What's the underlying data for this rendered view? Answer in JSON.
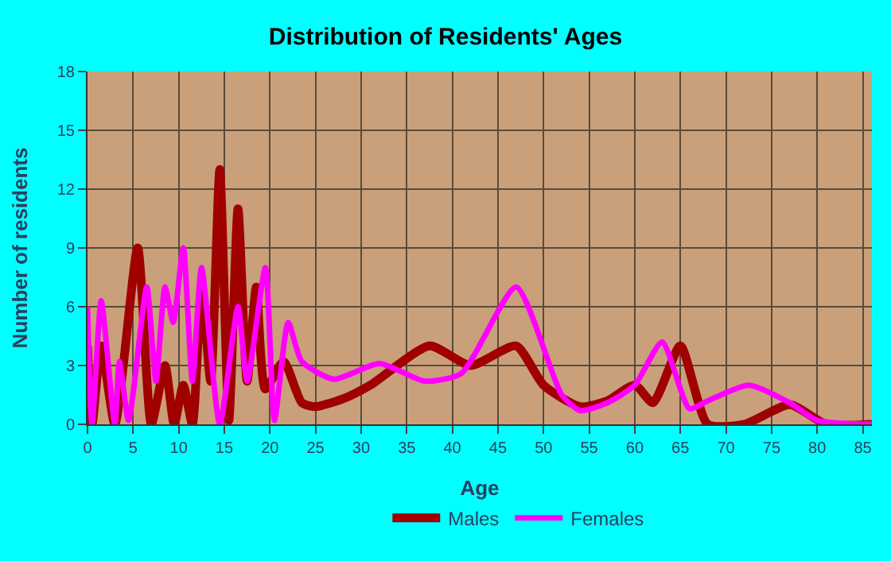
{
  "chart_data": {
    "type": "line",
    "title": "Distribution of Residents' Ages",
    "xlabel": "Age",
    "ylabel": "Number of residents",
    "xlim": [
      0,
      86
    ],
    "ylim": [
      0,
      18
    ],
    "xticks": [
      0,
      5,
      10,
      15,
      20,
      25,
      30,
      35,
      40,
      45,
      50,
      55,
      60,
      65,
      70,
      75,
      80,
      85
    ],
    "yticks": [
      0,
      3,
      6,
      9,
      12,
      15,
      18
    ],
    "grid": true,
    "legend": "bottom",
    "marker": "none",
    "line_style": "solid",
    "series": [
      {
        "name": "Males",
        "color": "#a00000",
        "x": [
          0,
          0.5,
          1.5,
          3,
          5.5,
          7,
          8.5,
          9.5,
          10.5,
          11.5,
          12.5,
          13.5,
          14.5,
          15.5,
          16.5,
          17.5,
          18.5,
          19.5,
          21.5,
          23.5,
          25,
          28,
          31,
          37.5,
          42,
          47,
          50,
          54,
          57,
          60,
          62,
          65,
          68,
          72,
          77,
          81,
          86
        ],
        "values": [
          4,
          0,
          4,
          0,
          9,
          0,
          3,
          0,
          2,
          0,
          7,
          2.2,
          13,
          0.2,
          11,
          2.2,
          7,
          1.8,
          3.2,
          1.1,
          0.9,
          1.3,
          2,
          4,
          3,
          4,
          2,
          0.9,
          1.2,
          2,
          1.1,
          4,
          0,
          0,
          1,
          0,
          0
        ]
      },
      {
        "name": "Females",
        "color": "#ff00ff",
        "x": [
          0,
          0.5,
          1.5,
          3,
          3.5,
          4.5,
          6.5,
          7.5,
          8.5,
          9.4,
          10.5,
          11.5,
          12.5,
          14.5,
          16.5,
          17.5,
          19.5,
          20.5,
          22,
          23.5,
          27,
          32,
          37,
          41,
          47,
          52,
          54,
          57,
          60,
          63,
          66,
          68,
          72.5,
          77,
          80,
          86
        ],
        "values": [
          6,
          0,
          6.3,
          0,
          3.2,
          0.2,
          7,
          2.2,
          7,
          5.2,
          9,
          2.2,
          8,
          0,
          6,
          2.2,
          8,
          0.2,
          5.2,
          3.2,
          2.3,
          3.1,
          2.2,
          2.6,
          7,
          1.5,
          0.7,
          1.1,
          2,
          4.2,
          0.8,
          1.2,
          2,
          1.1,
          0.2,
          0
        ]
      }
    ]
  }
}
